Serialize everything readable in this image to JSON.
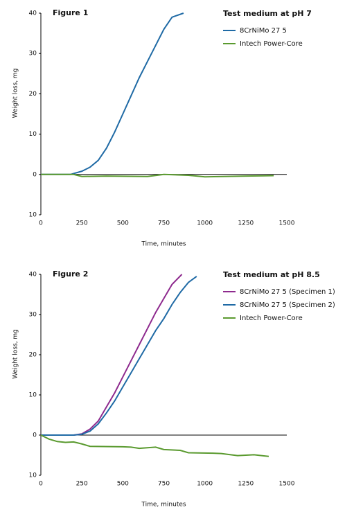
{
  "chart_data": [
    {
      "type": "line",
      "title": "Figure 1",
      "legend_title": "Test medium at pH 7",
      "xlabel": "Time, minutes",
      "ylabel": "Weight loss, mg",
      "xlim": [
        0,
        1500
      ],
      "xticks": [
        0,
        250,
        500,
        750,
        1000,
        1250,
        1500
      ],
      "ylim": [
        -10,
        40
      ],
      "yticks": [
        {
          "value": -10,
          "label": "10"
        },
        0,
        10,
        20,
        30,
        40
      ],
      "series": [
        {
          "name": "8CrNiMo 27 5",
          "color": "#1f6aa5",
          "x": [
            0,
            100,
            180,
            250,
            300,
            350,
            400,
            450,
            500,
            550,
            600,
            650,
            700,
            750,
            800,
            870
          ],
          "values": [
            0,
            0,
            0,
            0.8,
            1.8,
            3.5,
            6.5,
            10.5,
            15,
            19.5,
            24,
            28,
            32,
            36,
            39,
            40
          ]
        },
        {
          "name": "Intech Power-Core",
          "color": "#5a9a2f",
          "x": [
            0,
            200,
            250,
            400,
            650,
            750,
            900,
            1000,
            1250,
            1420
          ],
          "values": [
            0,
            0,
            -0.5,
            -0.4,
            -0.5,
            0,
            -0.2,
            -0.6,
            -0.4,
            -0.3
          ]
        }
      ]
    },
    {
      "type": "line",
      "title": "Figure 2",
      "legend_title": "Test medium at pH 8.5",
      "xlabel": "Time, minutes",
      "ylabel": "Weight loss, mg",
      "xlim": [
        0,
        1500
      ],
      "xticks": [
        0,
        250,
        500,
        750,
        1000,
        1250,
        1500
      ],
      "ylim": [
        -10,
        40
      ],
      "yticks": [
        {
          "value": -10,
          "label": "10"
        },
        0,
        10,
        20,
        30,
        40
      ],
      "series": [
        {
          "name": "8CrNiMo 27 5 (Specimen 1)",
          "color": "#8e2a8e",
          "x": [
            0,
            200,
            250,
            300,
            350,
            400,
            450,
            500,
            550,
            600,
            650,
            700,
            750,
            800,
            860
          ],
          "values": [
            0,
            0,
            0.3,
            1.5,
            3.5,
            7,
            10.5,
            14.5,
            18.5,
            22.5,
            26.5,
            30.5,
            34,
            37.5,
            40
          ]
        },
        {
          "name": "8CrNiMo 27 5 (Specimen 2)",
          "color": "#1f6aa5",
          "x": [
            0,
            200,
            250,
            300,
            350,
            400,
            450,
            500,
            550,
            600,
            650,
            700,
            750,
            800,
            850,
            900,
            950
          ],
          "values": [
            0,
            0,
            0.2,
            1,
            2.8,
            5.5,
            8.5,
            12,
            15.5,
            19,
            22.5,
            26,
            29,
            32.5,
            35.5,
            38,
            39.5
          ]
        },
        {
          "name": "Intech Power-Core",
          "color": "#5a9a2f",
          "x": [
            0,
            50,
            100,
            150,
            200,
            250,
            300,
            500,
            550,
            600,
            700,
            750,
            850,
            900,
            1050,
            1100,
            1200,
            1300,
            1390
          ],
          "values": [
            0,
            -1,
            -1.6,
            -1.8,
            -1.7,
            -2.2,
            -2.8,
            -2.9,
            -3,
            -3.3,
            -3,
            -3.6,
            -3.8,
            -4.4,
            -4.5,
            -4.6,
            -5.1,
            -4.9,
            -5.3
          ]
        }
      ]
    }
  ]
}
